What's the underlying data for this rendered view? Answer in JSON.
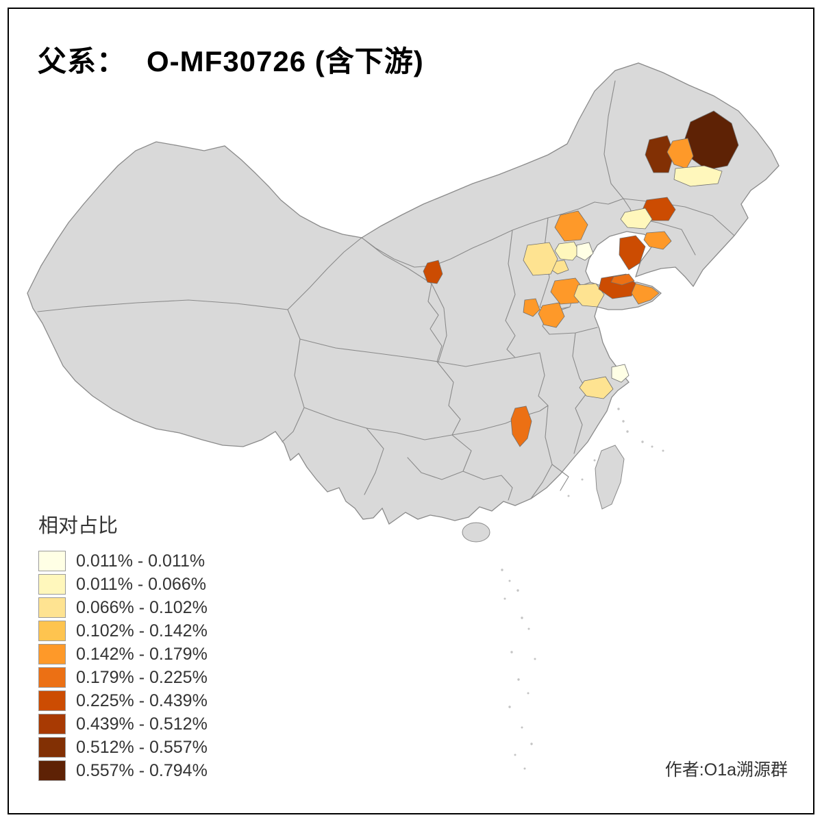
{
  "title": {
    "prefix": "父系：",
    "main": "O-MF30726 (含下游)"
  },
  "legend": {
    "title": "相对占比",
    "entries": [
      {
        "label": "0.011% - 0.011%",
        "color": "#FFFFE5"
      },
      {
        "label": "0.011% - 0.066%",
        "color": "#FFF7BC"
      },
      {
        "label": "0.066% - 0.102%",
        "color": "#FEE391"
      },
      {
        "label": "0.102% - 0.142%",
        "color": "#FEC44F"
      },
      {
        "label": "0.142% - 0.179%",
        "color": "#FE9929"
      },
      {
        "label": "0.179% - 0.225%",
        "color": "#EC7014"
      },
      {
        "label": "0.225% - 0.439%",
        "color": "#CC4C02"
      },
      {
        "label": "0.439% - 0.512%",
        "color": "#A83A03"
      },
      {
        "label": "0.512% - 0.557%",
        "color": "#823004"
      },
      {
        "label": "0.557% - 0.794%",
        "color": "#5E2205"
      }
    ]
  },
  "credit": "作者:O1a溯源群",
  "map": {
    "land_fill": "#D9D9D9",
    "border_color": "#8A8A8A",
    "islet_fill": "#C4C4C4",
    "background": "#FFFFFF",
    "patches": [
      {
        "class_index": 9
      },
      {
        "class_index": 8
      },
      {
        "class_index": 4
      },
      {
        "class_index": 1
      },
      {
        "class_index": 6
      },
      {
        "class_index": 1
      },
      {
        "class_index": 6
      },
      {
        "class_index": 4
      },
      {
        "class_index": 4
      },
      {
        "class_index": 1
      },
      {
        "class_index": 0
      },
      {
        "class_index": 2
      },
      {
        "class_index": 2
      },
      {
        "class_index": 6
      },
      {
        "class_index": 4
      },
      {
        "class_index": 2
      },
      {
        "class_index": 6
      },
      {
        "class_index": 5
      },
      {
        "class_index": 4
      },
      {
        "class_index": 4
      },
      {
        "class_index": 0
      },
      {
        "class_index": 2
      },
      {
        "class_index": 5
      },
      {
        "class_index": 4
      }
    ]
  }
}
